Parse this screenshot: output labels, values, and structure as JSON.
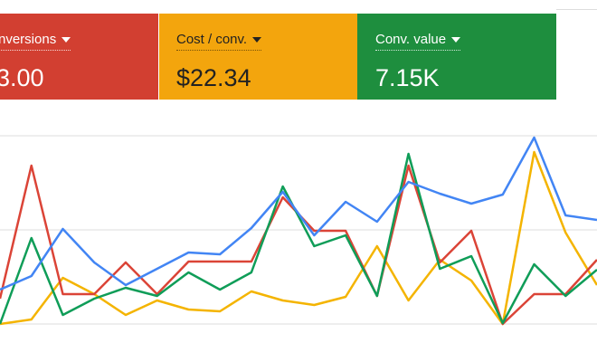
{
  "cards": [
    {
      "title": "nversions",
      "value": "3.00",
      "color": "#d23f31"
    },
    {
      "title": "Cost / conv.",
      "value": "$22.34",
      "color": "#f3a50d"
    },
    {
      "title": "Conv. value",
      "value": "7.15K",
      "color": "#1e8e3e"
    }
  ],
  "chart_data": {
    "type": "line",
    "categories": [
      null,
      null,
      null,
      null,
      null,
      null,
      null,
      null,
      null,
      null,
      null,
      null,
      null,
      null,
      null,
      null,
      null,
      null,
      null,
      null
    ],
    "ylim": [
      0,
      208
    ],
    "yticks": [
      0,
      104,
      208
    ],
    "grid": true,
    "series": [
      {
        "name": null,
        "color": "#f4b400",
        "values": [
          0,
          5,
          51,
          33,
          10,
          26,
          16,
          14,
          36,
          26,
          21,
          30,
          86,
          26,
          71,
          48,
          0,
          190,
          101,
          43
        ]
      },
      {
        "name": null,
        "color": "#db4437",
        "values": [
          28,
          175,
          33,
          33,
          68,
          33,
          69,
          69,
          69,
          140,
          103,
          103,
          31,
          175,
          68,
          103,
          0,
          33,
          33,
          71
        ]
      },
      {
        "name": null,
        "color": "#0f9d58",
        "values": [
          0,
          95,
          10,
          28,
          40,
          31,
          57,
          38,
          57,
          152,
          86,
          98,
          31,
          188,
          61,
          75,
          1,
          66,
          31,
          60
        ]
      },
      {
        "name": null,
        "color": "#4285f4",
        "values": [
          38,
          53,
          105,
          68,
          43,
          61,
          79,
          77,
          106,
          146,
          98,
          135,
          113,
          157,
          144,
          133,
          143,
          206,
          120,
          115
        ]
      }
    ]
  }
}
